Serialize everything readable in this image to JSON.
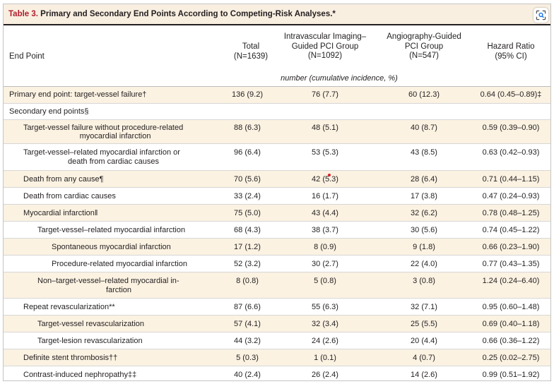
{
  "title": {
    "label": "Table 3.",
    "text": "Primary and Secondary End Points According to Competing-Risk Analyses.*"
  },
  "lens_icon": "lens-search-icon",
  "colors": {
    "header_band": "#f9efe1",
    "row_shade": "#fbf2e2",
    "table_label": "#b01c2e"
  },
  "columns": {
    "end_point": {
      "line1": "End Point"
    },
    "total": {
      "line1": "Total",
      "line2": "(N=1639)"
    },
    "ivi": {
      "line1": "Intravascular Imaging–",
      "line2": "Guided PCI Group",
      "line3": "(N=1092)"
    },
    "angio": {
      "line1": "Angiography-Guided",
      "line2": "PCI Group",
      "line3": "(N=547)"
    },
    "hr": {
      "line1": "Hazard Ratio",
      "line2": "(95% CI)"
    }
  },
  "units_caption": "number (cumulative incidence, %)",
  "rows": [
    {
      "label": "Primary end point: target-vessel failure†",
      "total": "136 (9.2)",
      "ivi": "76 (7.7)",
      "angio": "60 (12.3)",
      "hr": "0.64 (0.45–0.89)‡"
    },
    {
      "label": "Secondary end points§",
      "total": "",
      "ivi": "",
      "angio": "",
      "hr": ""
    },
    {
      "label": "Target-vessel failure without procedure-related",
      "label2": "myocardial infarction",
      "total": "88 (6.3)",
      "ivi": "48 (5.1)",
      "angio": "40 (8.7)",
      "hr": "0.59 (0.39–0.90)"
    },
    {
      "label": "Target-vessel–related myocardial infarction or",
      "label2": "death from cardiac causes",
      "total": "96 (6.4)",
      "ivi": "53 (5.3)",
      "angio": "43 (8.5)",
      "hr": "0.63 (0.42–0.93)"
    },
    {
      "label": "Death from any cause¶",
      "total": "70 (5.6)",
      "ivi": "42 (5.3)",
      "angio": "28 (6.4)",
      "hr": "0.71 (0.44–1.15)"
    },
    {
      "label": "Death from cardiac causes",
      "total": "33 (2.4)",
      "ivi": "16 (1.7)",
      "angio": "17 (3.8)",
      "hr": "0.47 (0.24–0.93)"
    },
    {
      "label": "Myocardial infarction‖",
      "total": "75 (5.0)",
      "ivi": "43 (4.4)",
      "angio": "32 (6.2)",
      "hr": "0.78 (0.48–1.25)"
    },
    {
      "label": "Target-vessel–related myocardial infarction",
      "total": "68 (4.3)",
      "ivi": "38 (3.7)",
      "angio": "30 (5.6)",
      "hr": "0.74 (0.45–1.22)"
    },
    {
      "label": "Spontaneous myocardial infarction",
      "total": "17 (1.2)",
      "ivi": "8 (0.9)",
      "angio": "9 (1.8)",
      "hr": "0.66 (0.23–1.90)"
    },
    {
      "label": "Procedure-related myocardial infarction",
      "total": "52 (3.2)",
      "ivi": "30 (2.7)",
      "angio": "22 (4.0)",
      "hr": "0.77 (0.43–1.35)"
    },
    {
      "label": "Non–target-vessel–related myocardial in-",
      "label2": "farction",
      "total": "8 (0.8)",
      "ivi": "5 (0.8)",
      "angio": "3 (0.8)",
      "hr": "1.24 (0.24–6.40)"
    },
    {
      "label": "Repeat revascularization**",
      "total": "87 (6.6)",
      "ivi": "55 (6.3)",
      "angio": "32 (7.1)",
      "hr": "0.95 (0.60–1.48)"
    },
    {
      "label": "Target-vessel revascularization",
      "total": "57 (4.1)",
      "ivi": "32 (3.4)",
      "angio": "25 (5.5)",
      "hr": "0.69 (0.40–1.18)"
    },
    {
      "label": "Target-lesion revascularization",
      "total": "44 (3.2)",
      "ivi": "24 (2.6)",
      "angio": "20 (4.4)",
      "hr": "0.66 (0.36–1.22)"
    },
    {
      "label": "Definite stent thrombosis††",
      "total": "5 (0.3)",
      "ivi": "1 (0.1)",
      "angio": "4 (0.7)",
      "hr": "0.25 (0.02–2.75)"
    },
    {
      "label": "Contrast-induced nephropathy‡‡",
      "total": "40 (2.4)",
      "ivi": "26 (2.4)",
      "angio": "14 (2.6)",
      "hr": "0.99 (0.51–1.92)"
    }
  ]
}
